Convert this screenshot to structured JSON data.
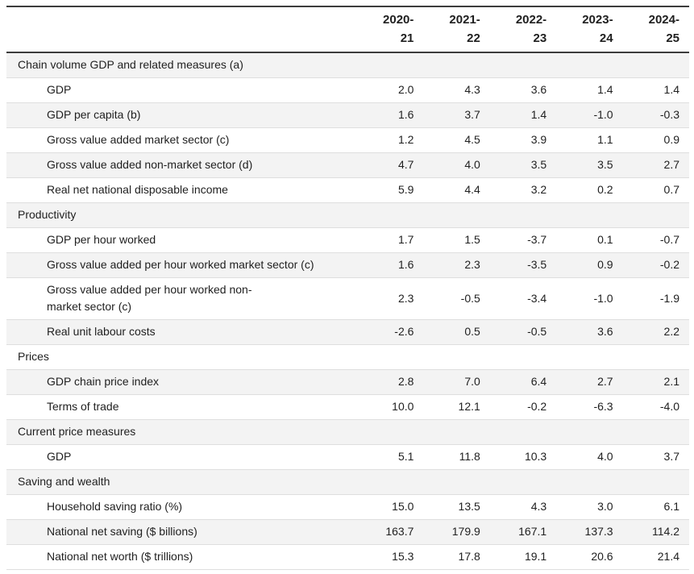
{
  "chart_data": {
    "type": "table",
    "columns": [
      "2020-21",
      "2021-22",
      "2022-23",
      "2023-24",
      "2024-25"
    ],
    "column_header_lines": [
      [
        "2020-",
        "21"
      ],
      [
        "2021-",
        "22"
      ],
      [
        "2022-",
        "23"
      ],
      [
        "2023-",
        "24"
      ],
      [
        "2024-",
        "25"
      ]
    ],
    "sections": [
      {
        "header": "Chain volume GDP and related measures (a)",
        "rows": [
          {
            "label": "GDP",
            "values": [
              "2.0",
              "4.3",
              "3.6",
              "1.4",
              "1.4"
            ]
          },
          {
            "label": "GDP per capita (b)",
            "values": [
              "1.6",
              "3.7",
              "1.4",
              "-1.0",
              "-0.3"
            ]
          },
          {
            "label": "Gross value added market sector (c)",
            "values": [
              "1.2",
              "4.5",
              "3.9",
              "1.1",
              "0.9"
            ]
          },
          {
            "label": "Gross value added non-market sector (d)",
            "values": [
              "4.7",
              "4.0",
              "3.5",
              "3.5",
              "2.7"
            ]
          },
          {
            "label": "Real net national disposable income",
            "values": [
              "5.9",
              "4.4",
              "3.2",
              "0.2",
              "0.7"
            ]
          }
        ]
      },
      {
        "header": "Productivity",
        "rows": [
          {
            "label": "GDP per hour worked",
            "values": [
              "1.7",
              "1.5",
              "-3.7",
              "0.1",
              "-0.7"
            ]
          },
          {
            "label": "Gross value added per hour worked market sector (c)",
            "values": [
              "1.6",
              "2.3",
              "-3.5",
              "0.9",
              "-0.2"
            ]
          },
          {
            "label": "Gross value added per hour worked non-market sector (c)",
            "values": [
              "2.3",
              "-0.5",
              "-3.4",
              "-1.0",
              "-1.9"
            ]
          },
          {
            "label": "Real unit labour costs",
            "values": [
              "-2.6",
              "0.5",
              "-0.5",
              "3.6",
              "2.2"
            ]
          }
        ]
      },
      {
        "header": "Prices",
        "rows": [
          {
            "label": "GDP chain price index",
            "values": [
              "2.8",
              "7.0",
              "6.4",
              "2.7",
              "2.1"
            ]
          },
          {
            "label": "Terms of trade",
            "values": [
              "10.0",
              "12.1",
              "-0.2",
              "-6.3",
              "-4.0"
            ]
          }
        ]
      },
      {
        "header": "Current price measures",
        "rows": [
          {
            "label": "GDP",
            "values": [
              "5.1",
              "11.8",
              "10.3",
              "4.0",
              "3.7"
            ]
          }
        ]
      },
      {
        "header": "Saving and wealth",
        "rows": [
          {
            "label": "Household saving ratio (%)",
            "values": [
              "15.0",
              "13.5",
              "4.3",
              "3.0",
              "6.1"
            ]
          },
          {
            "label": "National net saving ($ billions)",
            "values": [
              "163.7",
              "179.9",
              "167.1",
              "137.3",
              "114.2"
            ]
          },
          {
            "label": "National net worth ($ trillions)",
            "values": [
              "15.3",
              "17.8",
              "19.1",
              "20.6",
              "21.4"
            ]
          }
        ]
      }
    ],
    "layout": {
      "zebra_stripe_color": "#f3f3f3",
      "separator_color": "#dedede",
      "heavy_border_color": "#3c3c3c"
    }
  }
}
